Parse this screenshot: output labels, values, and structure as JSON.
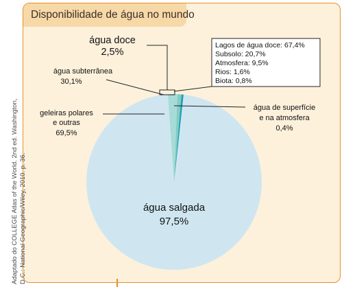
{
  "title": "Disponibilidade de água no mundo",
  "source_line1": "Adaptado do COLLEGE Atlas of the World. 2nd ed. Washington,",
  "source_line2": "D.C.: National Geographic/Wiley, 2010. p. 36.",
  "colors": {
    "frame_border": "#e58f2a",
    "frame_background": "#fdf1dc",
    "title_tab": "#f7d9a8",
    "salt_water": "#cfe6f1",
    "groundwater": "#83ccc3",
    "glaciers": "#a7dbd8",
    "surface_water": "#1a9fb5"
  },
  "chart_data": [
    {
      "type": "pie",
      "slices": [
        {
          "label": "água salgada",
          "value": "97,5%",
          "percent": 97.5
        },
        {
          "label": "água doce",
          "value": "2,5%",
          "percent": 2.5
        }
      ]
    },
    {
      "type": "pie",
      "note_label": "água doce",
      "slices": [
        {
          "label": "geleiras polares e outras",
          "value": "69,5%",
          "percent": 69.5
        },
        {
          "label": "água subterrânea",
          "value": "30,1%",
          "percent": 30.1
        },
        {
          "label": "água de superfície e na atmosfera",
          "value": "0,4%",
          "percent": 0.4
        }
      ]
    },
    {
      "type": "table",
      "rows": [
        {
          "label": "Lagos de água doce",
          "value": "67,4%"
        },
        {
          "label": "Subsolo",
          "value": "20,7%"
        },
        {
          "label": "Atmosfera",
          "value": "9,5%"
        },
        {
          "label": "Rios",
          "value": "1,6%"
        },
        {
          "label": "Biota",
          "value": "0,8%"
        }
      ]
    }
  ],
  "labels": {
    "fresh_water": "água doce",
    "fresh_water_value": "2,5%",
    "groundwater": "água subterrânea",
    "groundwater_value": "30,1%",
    "glaciers_line1": "geleiras polares",
    "glaciers_line2": "e outras",
    "glaciers_value": "69,5%",
    "surface_line1": "água de superfície",
    "surface_line2": "e na atmosfera",
    "surface_value": "0,4%",
    "salt_water": "água salgada",
    "salt_water_value": "97,5%"
  }
}
